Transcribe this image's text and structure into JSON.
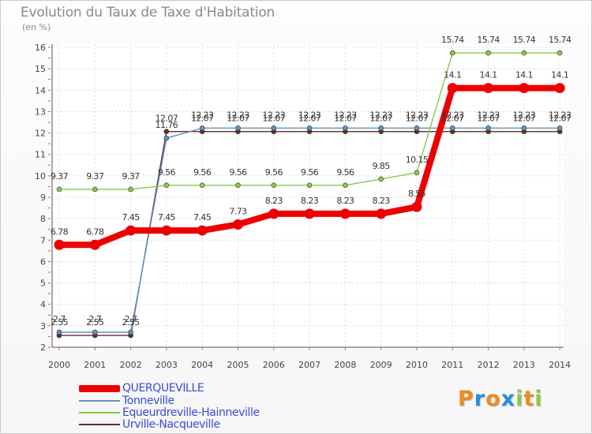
{
  "chart_data": {
    "type": "line",
    "title": "Evolution du Taux de Taxe d'Habitation",
    "ylabel": "(en %)",
    "ylim": [
      2,
      16
    ],
    "yticks": [
      "2",
      "3",
      "4",
      "5",
      "6",
      "7",
      "8",
      "9",
      "10",
      "11",
      "12",
      "13",
      "14",
      "15",
      "16"
    ],
    "x": [
      "2000",
      "2001",
      "2002",
      "2003",
      "2004",
      "2005",
      "2006",
      "2007",
      "2008",
      "2009",
      "2010",
      "2011",
      "2012",
      "2013",
      "2014"
    ],
    "series": [
      {
        "name": "Urville-Nacqueville",
        "color": "#6b2a2a",
        "values": [
          2.55,
          2.55,
          2.55,
          12.07,
          12.07,
          12.07,
          12.07,
          12.07,
          12.07,
          12.07,
          12.07,
          12.07,
          12.07,
          12.07,
          12.07
        ],
        "labels": [
          "2.55",
          "2.55",
          "2.55",
          "12.07",
          "12.07",
          "12.07",
          "12.07",
          "12.07",
          "12.07",
          "12.07",
          "12.07",
          "12.07",
          "12.07",
          "12.07",
          "12.07"
        ]
      },
      {
        "name": "Tonneville",
        "color": "#5f92bf",
        "values": [
          2.7,
          2.7,
          2.7,
          11.76,
          12.23,
          12.23,
          12.23,
          12.23,
          12.23,
          12.23,
          12.23,
          12.23,
          12.23,
          12.23,
          12.23
        ],
        "labels": [
          "2.7",
          "2.7",
          "2.7",
          "11.76",
          "12.23",
          "12.23",
          "12.23",
          "12.23",
          "12.23",
          "12.23",
          "12.23",
          "12.23",
          "12.23",
          "12.23",
          "12.23"
        ]
      },
      {
        "name": "Equeurdreville-Hainneville",
        "color": "#8cc84b",
        "values": [
          9.37,
          9.37,
          9.37,
          9.56,
          9.56,
          9.56,
          9.56,
          9.56,
          9.56,
          9.85,
          10.15,
          15.74,
          15.74,
          15.74,
          15.74
        ],
        "labels": [
          "9.37",
          "9.37",
          "9.37",
          "9.56",
          "9.56",
          "9.56",
          "9.56",
          "9.56",
          "9.56",
          "9.85",
          "10.15",
          "15.74",
          "15.74",
          "15.74",
          "15.74"
        ]
      },
      {
        "name": "QUERQUEVILLE",
        "color": "#ee0000",
        "values": [
          6.78,
          6.78,
          7.45,
          7.45,
          7.45,
          7.73,
          8.23,
          8.23,
          8.23,
          8.23,
          8.55,
          14.1,
          14.1,
          14.1,
          14.1
        ],
        "labels": [
          "6.78",
          "6.78",
          "7.45",
          "7.45",
          "7.45",
          "7.73",
          "8.23",
          "8.23",
          "8.23",
          "8.23",
          "8.55",
          "14.1",
          "14.1",
          "14.1",
          "14.1"
        ]
      }
    ],
    "legend": [
      {
        "name": "QUERQUEVILLE",
        "color": "#ee0000",
        "label_color": "#3c4ad6"
      },
      {
        "name": "Tonneville",
        "color": "#5f92bf",
        "label_color": "#3c4ad6"
      },
      {
        "name": "Equeurdreville-Hainneville",
        "color": "#8cc84b",
        "label_color": "#3c4ad6"
      },
      {
        "name": "Urville-Nacqueville",
        "color": "#6b2a2a",
        "label_color": "#3c4ad6"
      }
    ]
  },
  "logo": {
    "letters": [
      "P",
      "r",
      "o",
      "x",
      "i",
      "t",
      "i"
    ],
    "colors": [
      "#f08a1c",
      "#2a8fd6",
      "#f08a1c",
      "#2a8fd6",
      "#8cc84b",
      "#f08a1c",
      "#8cc84b"
    ]
  }
}
